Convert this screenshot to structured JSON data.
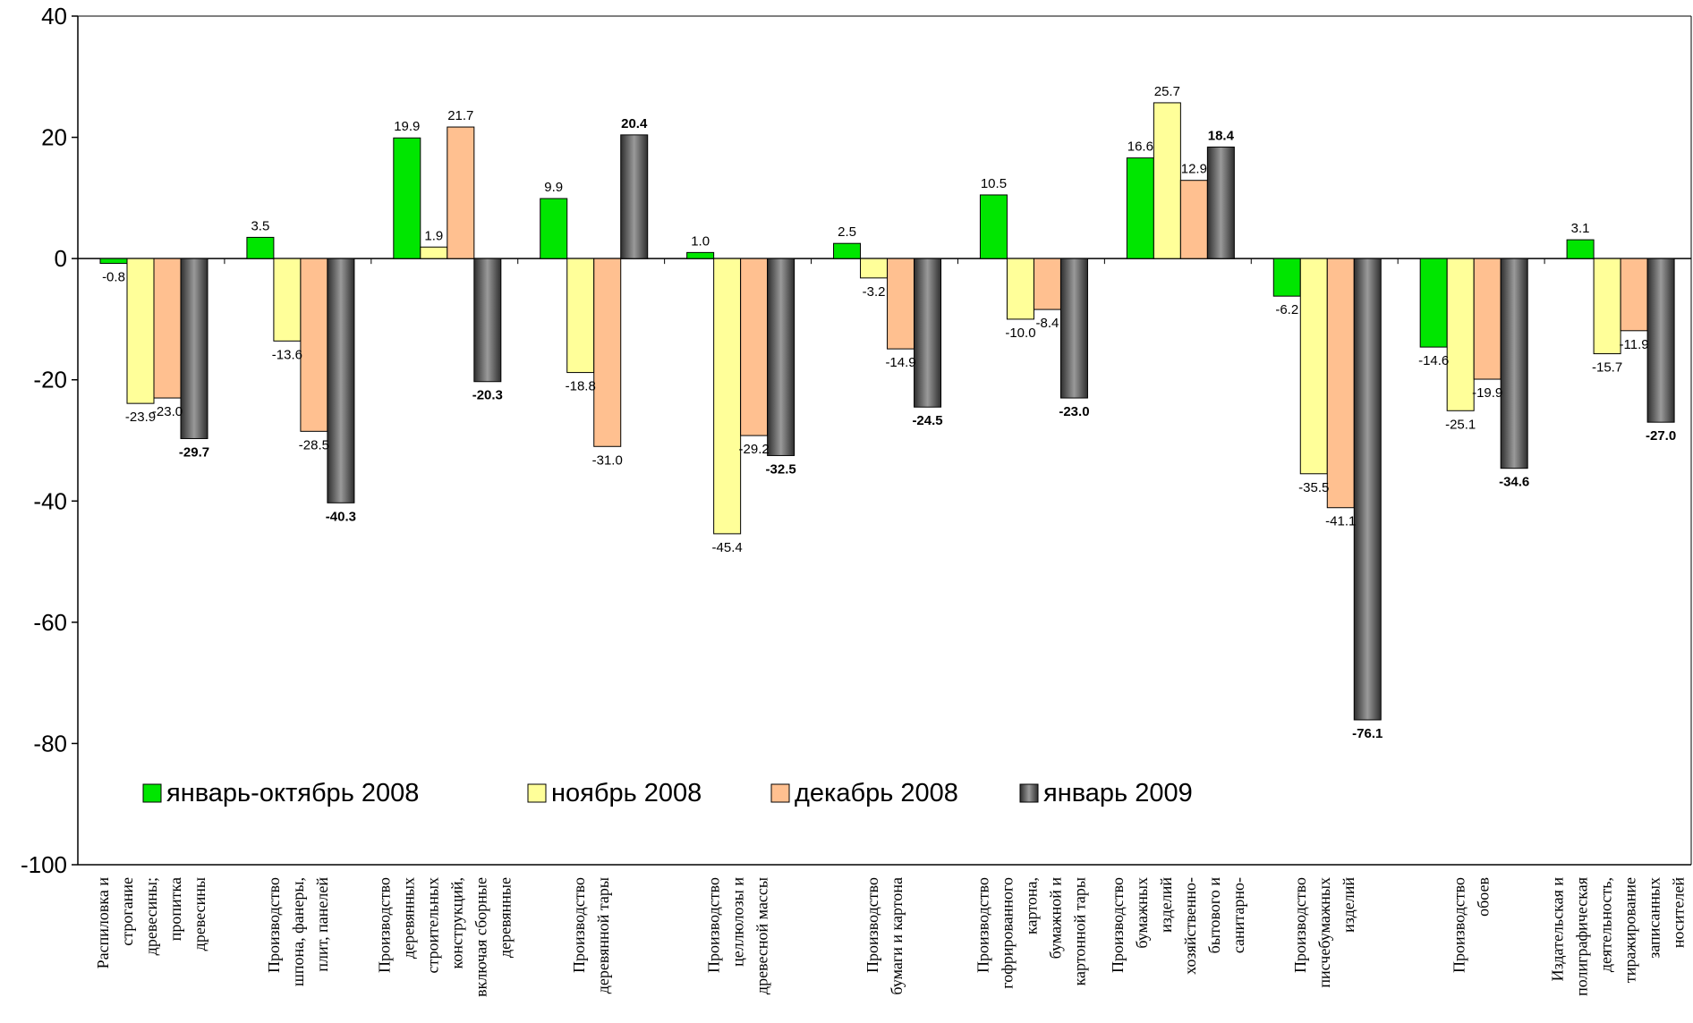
{
  "chart_data": {
    "type": "bar",
    "ylim": [
      -100,
      40
    ],
    "yticks": [
      40,
      20,
      0,
      -20,
      -40,
      -60,
      -80,
      -100
    ],
    "grid": false,
    "legend_position": "lower-left inside plot",
    "categories": [
      [
        "Распиловка и",
        "строгание",
        "древесины;",
        "пропитка",
        "древесины"
      ],
      [
        "Производство",
        "шпона, фанеры,",
        "плит, панелей"
      ],
      [
        "Производство",
        "деревянных",
        "строительных",
        "конструкций,",
        "включая сборные",
        "деревянные"
      ],
      [
        "Производство",
        "деревянной тары"
      ],
      [
        "Производство",
        "целлюлозы и",
        "древесной массы"
      ],
      [
        "Производство",
        "бумаги и картона"
      ],
      [
        "Производство",
        "гофрированного",
        "картона,",
        "бумажной и",
        "картонной тары"
      ],
      [
        "Производство",
        "бумажных",
        "изделий",
        "хозяйственно-",
        "бытового и",
        "санитарно-"
      ],
      [
        "Производство",
        "писчебумажных",
        "изделий"
      ],
      [
        "Производство",
        "обоев"
      ],
      [
        "Издательская и",
        "полиграфическая",
        "деятельность,",
        "тиражирование",
        "записанных",
        "носителей"
      ]
    ],
    "series": [
      {
        "name": "январь-октябрь 2008",
        "color": "#00e600",
        "values": [
          -0.8,
          3.5,
          19.9,
          9.9,
          1.0,
          2.5,
          10.5,
          16.6,
          -6.2,
          -14.6,
          3.1
        ],
        "labels": [
          "-0.8",
          "3.5",
          "19.9",
          "9.9",
          "1.0",
          "2.5",
          "10.5",
          "16.6",
          "-6.2",
          "-14.6",
          "3.1"
        ]
      },
      {
        "name": "ноябрь 2008",
        "color": "#ffff99",
        "values": [
          -23.9,
          -13.6,
          1.9,
          -18.8,
          -45.4,
          -3.2,
          -10.0,
          25.7,
          -35.5,
          -25.1,
          -15.7
        ],
        "labels": [
          "-23.9",
          "-13.6",
          "1.9",
          "-18.8",
          "-45.4",
          "-3.2",
          "-10.0",
          "25.7",
          "-35.5",
          "-25.1",
          "-15.7"
        ]
      },
      {
        "name": "декабрь 2008",
        "color": "#ffc090",
        "values": [
          -23.0,
          -28.5,
          21.7,
          -31.0,
          -29.2,
          -14.9,
          -8.4,
          12.9,
          -41.1,
          -19.9,
          -11.9
        ],
        "labels": [
          "-23.0",
          "-28.5",
          "21.7",
          "-31.0",
          "-29.2",
          "-14.9",
          "-8.4",
          "12.9",
          "-41.1",
          "-19.9",
          "-11.9"
        ]
      },
      {
        "name": "январь 2009",
        "color": "#555555",
        "values": [
          -29.7,
          -40.3,
          -20.3,
          20.4,
          -32.5,
          -24.5,
          -23.0,
          18.4,
          -76.1,
          -34.6,
          -27.0
        ],
        "labels": [
          "-29.7",
          "-40.3",
          "-20.3",
          "20.4",
          "-32.5",
          "-24.5",
          "-23.0",
          "18.4",
          "-76.1",
          "-34.6",
          "-27.0"
        ]
      }
    ]
  }
}
